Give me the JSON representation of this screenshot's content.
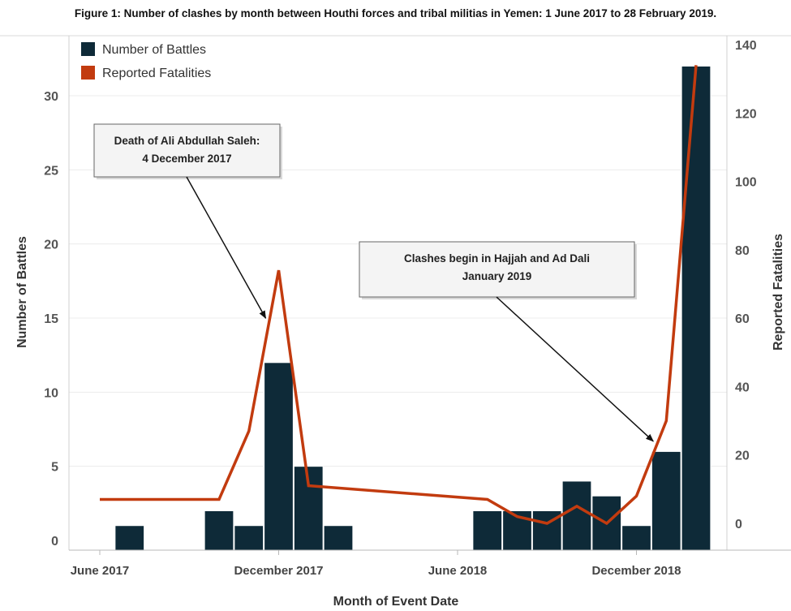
{
  "chart_data": {
    "type": "bar+line",
    "title": "Figure 1: Number of clashes by month between Houthi forces and tribal militias in Yemen: 1 June 2017 to 28 February 2019.",
    "xlabel": "Month of Event Date",
    "ylabel": "Number of Battles",
    "y2label": "Reported Fatalities",
    "x_tick_labels": [
      "June 2017",
      "December 2017",
      "June 2018",
      "December 2018"
    ],
    "x_tick_months": [
      "2017-06",
      "2017-12",
      "2018-06",
      "2018-12"
    ],
    "ylim": [
      0,
      32.5
    ],
    "y_ticks": [
      0,
      5,
      10,
      15,
      20,
      25,
      30
    ],
    "y2lim": [
      -4,
      140
    ],
    "y2_ticks": [
      0,
      20,
      40,
      60,
      80,
      100,
      120,
      140
    ],
    "grid": true,
    "legend_position": "top-left",
    "series": [
      {
        "name": "Number of Battles",
        "type": "bar",
        "color": "#0e2a38",
        "points": [
          {
            "month": "2017-07",
            "value": 1
          },
          {
            "month": "2017-10",
            "value": 2
          },
          {
            "month": "2017-11",
            "value": 1
          },
          {
            "month": "2017-12",
            "value": 12
          },
          {
            "month": "2018-01",
            "value": 5
          },
          {
            "month": "2018-02",
            "value": 1
          },
          {
            "month": "2018-07",
            "value": 2
          },
          {
            "month": "2018-08",
            "value": 2
          },
          {
            "month": "2018-09",
            "value": 2
          },
          {
            "month": "2018-10",
            "value": 4
          },
          {
            "month": "2018-11",
            "value": 3
          },
          {
            "month": "2018-12",
            "value": 1
          },
          {
            "month": "2019-01",
            "value": 6
          },
          {
            "month": "2019-02",
            "value": 32
          }
        ]
      },
      {
        "name": "Reported Fatalities",
        "type": "line",
        "color": "#c23b0f",
        "points": [
          {
            "month": "2017-06",
            "value": 7
          },
          {
            "month": "2017-10",
            "value": 7
          },
          {
            "month": "2017-11",
            "value": 27
          },
          {
            "month": "2017-12",
            "value": 74
          },
          {
            "month": "2018-01",
            "value": 11
          },
          {
            "month": "2018-07",
            "value": 7
          },
          {
            "month": "2018-08",
            "value": 2
          },
          {
            "month": "2018-09",
            "value": 0
          },
          {
            "month": "2018-10",
            "value": 5
          },
          {
            "month": "2018-11",
            "value": 0
          },
          {
            "month": "2018-12",
            "value": 8
          },
          {
            "month": "2019-01",
            "value": 30
          },
          {
            "month": "2019-02",
            "value": 134
          }
        ]
      }
    ],
    "annotations": [
      {
        "lines": [
          "Death of Ali Abdullah Saleh:",
          "4 December 2017"
        ],
        "points_to_month": "2017-12",
        "points_to_fatalities": 60
      },
      {
        "lines": [
          "Clashes begin in Hajjah and Ad Dali",
          "January 2019"
        ],
        "points_to_month": "2019-01",
        "points_to_fatalities": 24
      }
    ]
  }
}
